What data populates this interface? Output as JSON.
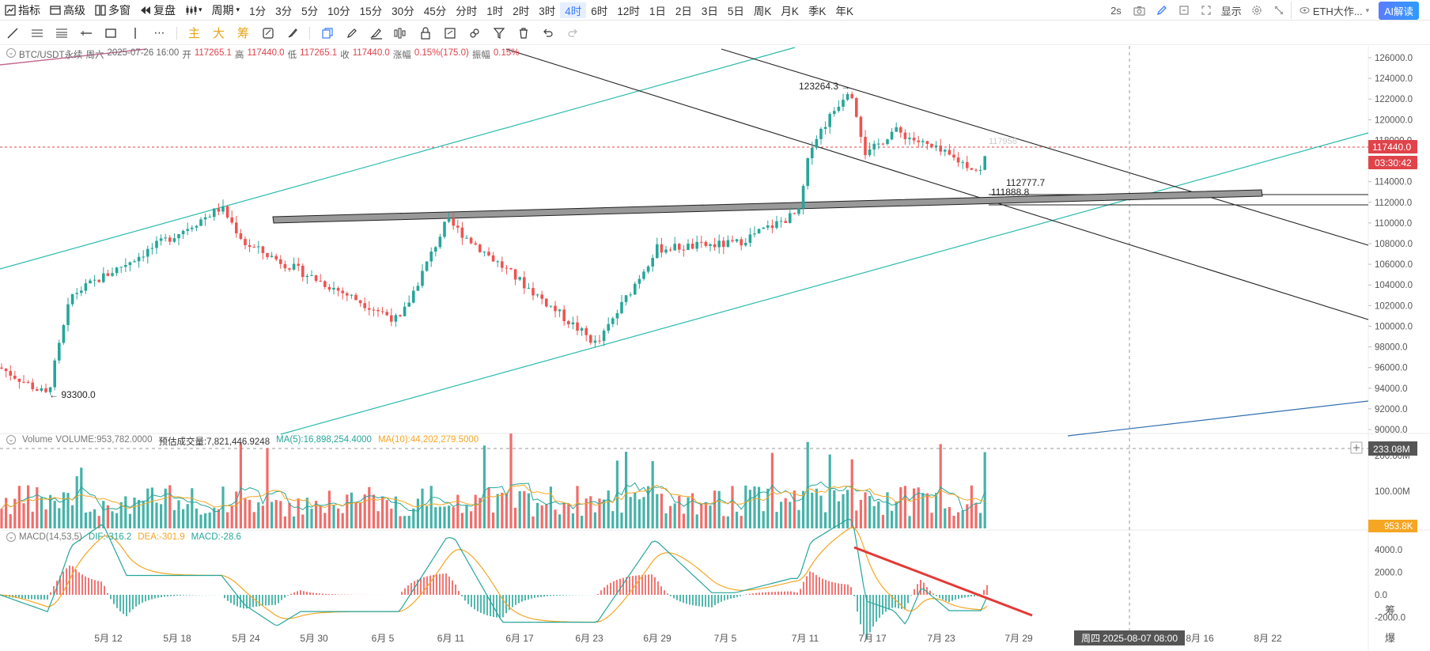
{
  "topbar": {
    "indicators_label": "指标",
    "advanced_label": "高级",
    "multi_window_label": "多窗",
    "replay_label": "复盘",
    "period_label": "周期",
    "periods": [
      "1分",
      "3分",
      "5分",
      "10分",
      "15分",
      "30分",
      "45分",
      "分时",
      "1时",
      "2时",
      "3时",
      "4时",
      "6时",
      "12时",
      "1日",
      "2日",
      "3日",
      "5日",
      "周K",
      "月K",
      "季K",
      "年K"
    ],
    "active_period": "4时",
    "refresh": "2s",
    "display_label": "显示",
    "symbol_select": "ETH大作...",
    "ai_label": "AI解读"
  },
  "drawing_toolbar": {
    "main_label": "主",
    "big_label": "大",
    "chip_label": "筹"
  },
  "stats": {
    "symbol": "BTC/USDT永续",
    "weekday": "周六",
    "datetime": "2025-07-26 16:00",
    "open_label": "开",
    "open": "117265.1",
    "high_label": "高",
    "high": "117440.0",
    "low_label": "低",
    "low": "117265.1",
    "close_label": "收",
    "close": "117440.0",
    "change_label": "涨幅",
    "change": "0.15%(175.0)",
    "amplitude_label": "振幅",
    "amplitude": "0.15%"
  },
  "volume_stats": {
    "name": "Volume",
    "volume": "VOLUME:953,782.0000",
    "estimate": "预估成交量:7,821,446.9248",
    "ma5": "MA(5):16,898,254.4000",
    "ma10": "MA(10):44,202,279.5000"
  },
  "macd_stats": {
    "name": "MACD(14,53,5)",
    "dif": "DIF:-316.2",
    "dea": "DEA:-301.9",
    "macd": "MACD:-28.6"
  },
  "colors": {
    "up": "#26a69a",
    "down": "#ef5350",
    "ma_yellow": "#f5a623",
    "channel": "#2bbbad",
    "accent": "#3a7bfd",
    "price_tag": "#e0434a"
  },
  "price_axis": {
    "ticks": [
      "126000.0",
      "124000.0",
      "122000.0",
      "120000.0",
      "118000.0",
      "116000.0",
      "114000.0",
      "112000.0",
      "110000.0",
      "108000.0",
      "106000.0",
      "104000.0",
      "102000.0",
      "100000.0",
      "98000.0",
      "96000.0",
      "94000.0",
      "92000.0",
      "90000.0"
    ],
    "last_price": "117440.0",
    "countdown": "03:30:42"
  },
  "volume_axis": {
    "ticks": [
      "200.00M",
      "100.00M"
    ],
    "crosshair": "233.08M",
    "last": "953.8K"
  },
  "macd_axis": {
    "ticks": [
      "4000.0",
      "2000.0",
      "0.0",
      "-2000.0"
    ]
  },
  "time_axis": {
    "ticks": [
      "5月 12",
      "5月 18",
      "5月 24",
      "5月 30",
      "6月 5",
      "6月 11",
      "6月 17",
      "6月 23",
      "6月 29",
      "7月 5",
      "7月 11",
      "7月 17",
      "7月 23",
      "7月 29",
      "8月 16",
      "8月 22"
    ],
    "crosshair": "周四 2025-08-07 08:00"
  },
  "annotations": {
    "high_mark": "123264.3",
    "low_mark": "93300.0",
    "level1": "112777.7",
    "level2": "111888.8",
    "ghost": "117958"
  },
  "bottom_right": {
    "chip_label": "筹",
    "explode_label": "爆"
  },
  "chart_data": {
    "type": "candlestick",
    "title": "BTC/USDT永续 4时",
    "ylim": [
      89000,
      127000
    ],
    "key_points": [
      {
        "x": "5月 7",
        "y": 96000
      },
      {
        "x": "5月 9",
        "y": 93300
      },
      {
        "x": "5月 12",
        "y": 103000
      },
      {
        "x": "5月 22",
        "y": 111500
      },
      {
        "x": "5月 24",
        "y": 108000
      },
      {
        "x": "6月 5",
        "y": 100500
      },
      {
        "x": "6月 11",
        "y": 110200
      },
      {
        "x": "6月 22",
        "y": 98200
      },
      {
        "x": "6月 29",
        "y": 107500
      },
      {
        "x": "7月 5",
        "y": 108000
      },
      {
        "x": "7月 10",
        "y": 111000
      },
      {
        "x": "7月 11",
        "y": 117500
      },
      {
        "x": "7月 14",
        "y": 123264.3
      },
      {
        "x": "7月 16",
        "y": 116500
      },
      {
        "x": "7月 20",
        "y": 119000
      },
      {
        "x": "7月 25",
        "y": 115000
      },
      {
        "x": "7月 26",
        "y": 117440
      }
    ],
    "macd_range": [
      -2000,
      5000
    ],
    "volume_range": [
      0,
      233080000
    ]
  }
}
